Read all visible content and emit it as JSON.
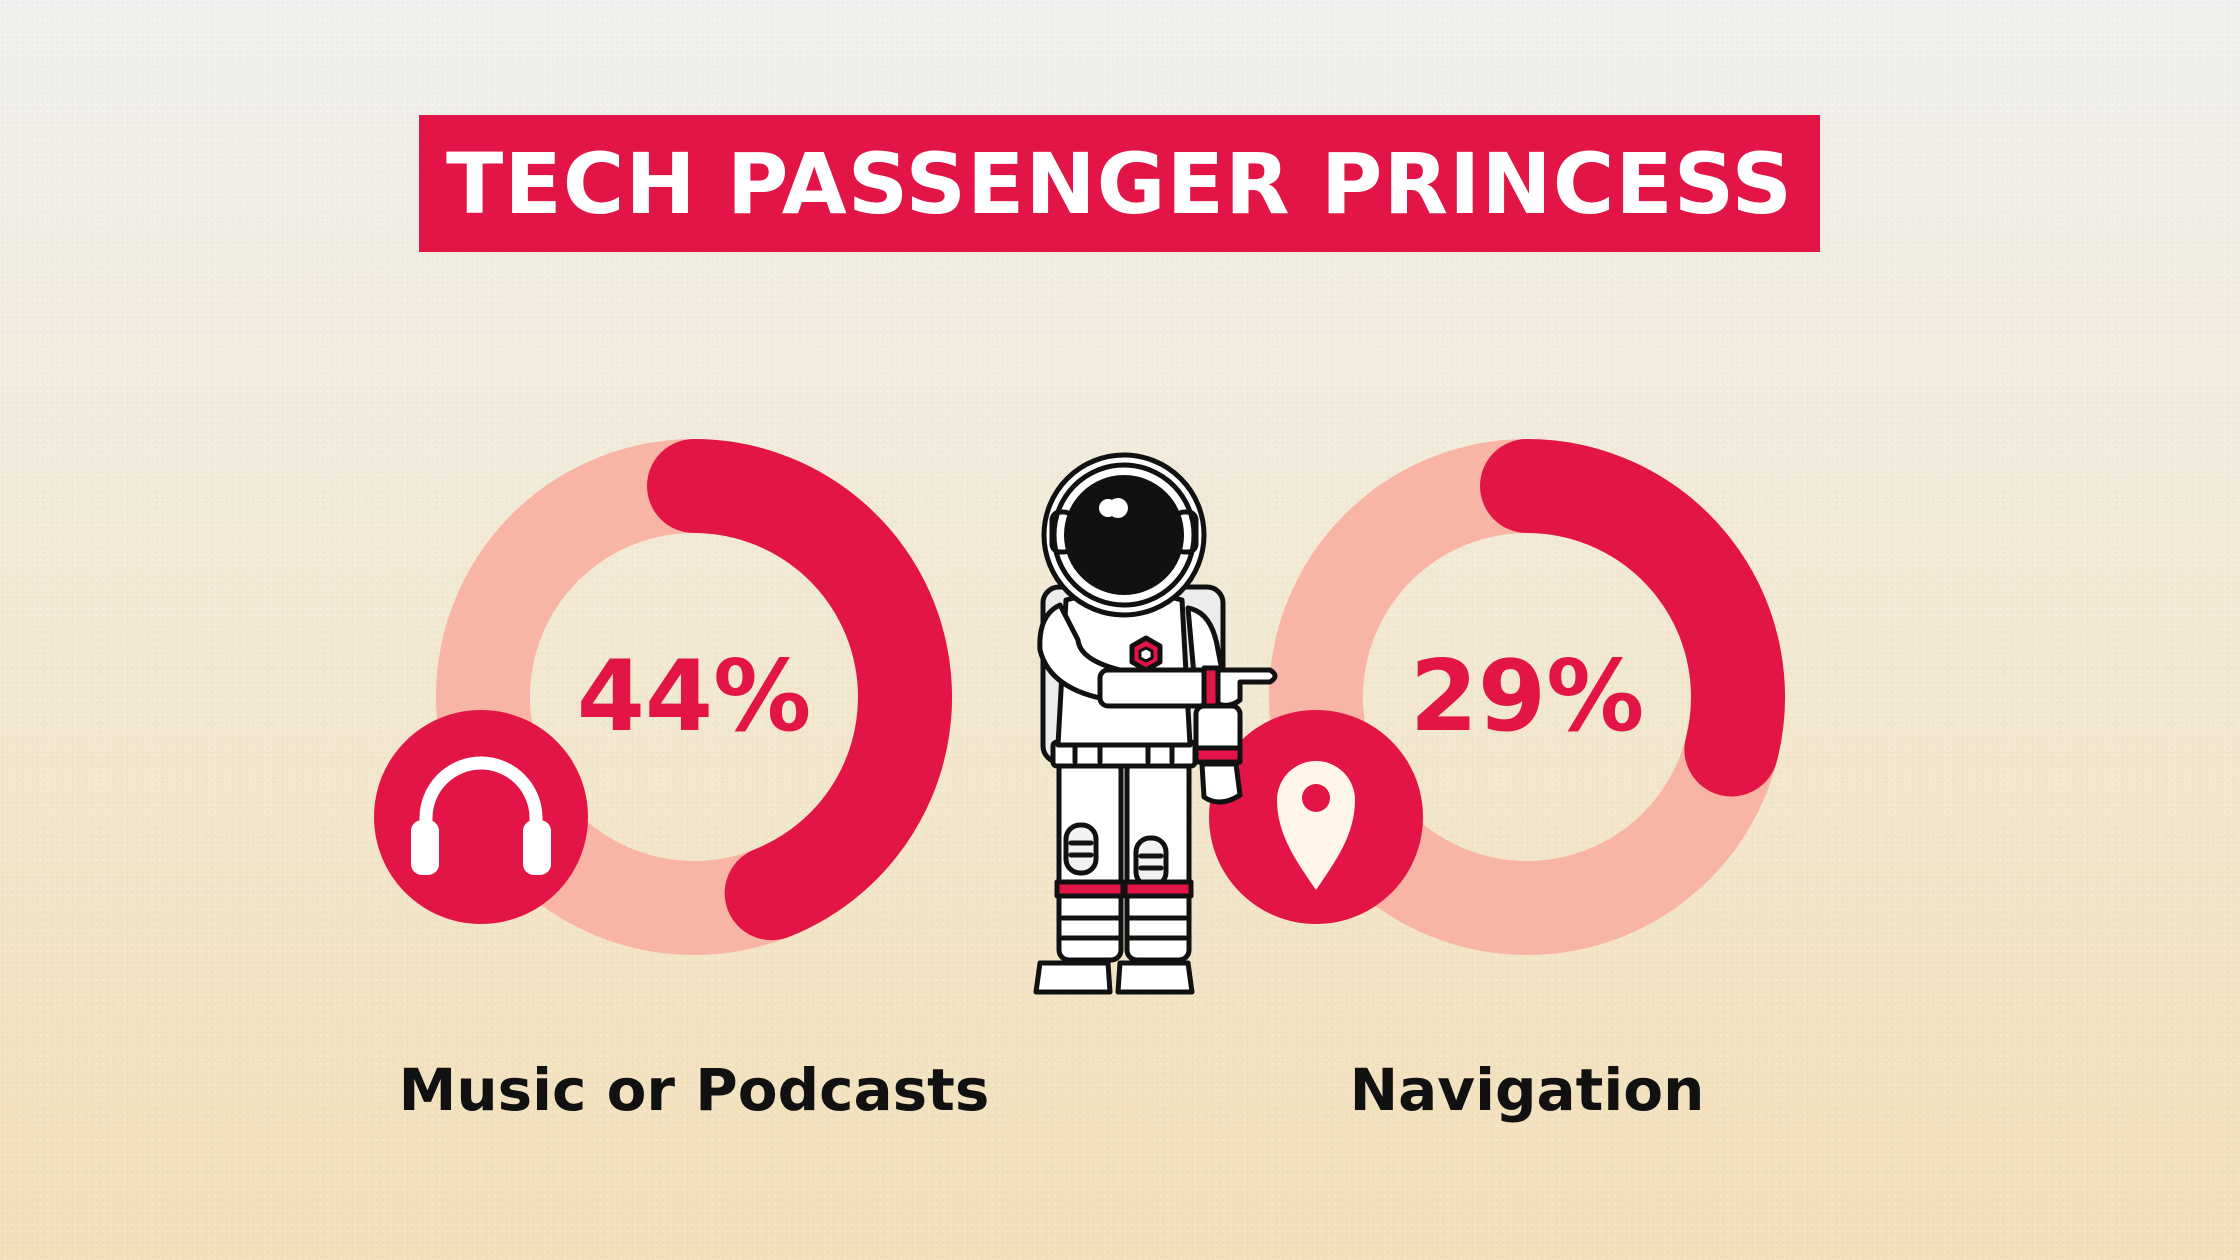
{
  "title": "TECH PASSENGER PRINCESS",
  "colors": {
    "accent": "#e31546",
    "track": "#f8b4a4",
    "background_top": "#f1f0ee",
    "background_bottom": "#f3dfb8"
  },
  "chart_data": [
    {
      "type": "pie",
      "style": "donut",
      "value": 44,
      "value_label": "44%",
      "label": "Music or Podcasts",
      "icon": "headphones-icon"
    },
    {
      "type": "pie",
      "style": "donut",
      "value": 29,
      "value_label": "29%",
      "label": "Navigation",
      "icon": "location-pin-icon"
    }
  ],
  "illustration": "astronaut-pointing-icon"
}
